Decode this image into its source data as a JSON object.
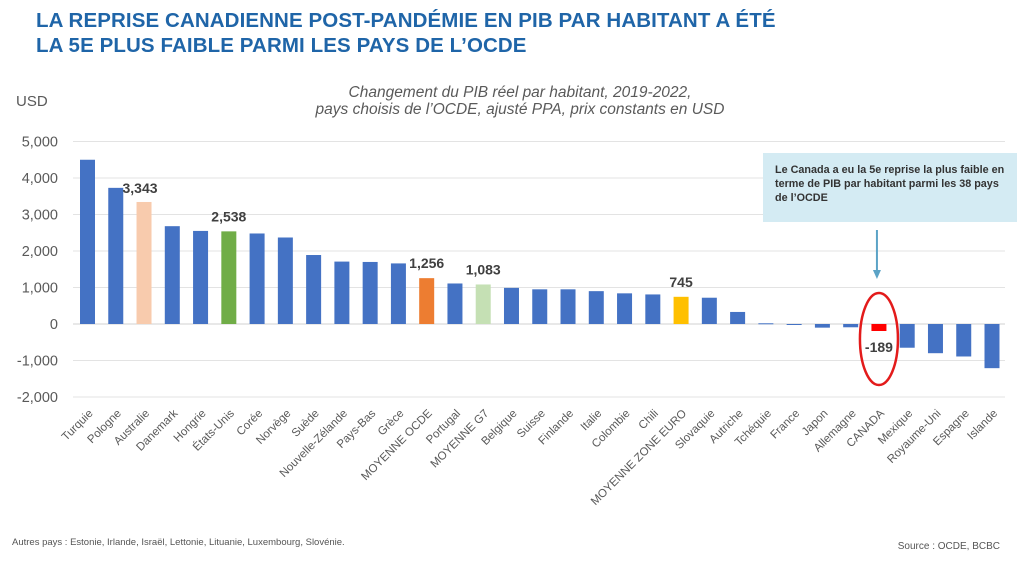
{
  "header": {
    "title_line1": "LA REPRISE CANADIENNE POST-PANDÉMIE EN PIB PAR HABITANT A ÉTÉ",
    "title_line2": "LA 5E PLUS FAIBLE PARMI LES PAYS DE L’OCDE"
  },
  "colors": {
    "default": "#4472c4",
    "Australie": "#f8cbad",
    "États-Unis": "#70ad47",
    "MOYENNE OCDE": "#ed7d31",
    "MOYENNE G7": "#c5e0b4",
    "MOYENNE ZONE EURO": "#ffc000",
    "CANADA": "#ff0000",
    "title": "#1f65a8",
    "callout_bg": "#d4ebf3",
    "arrow": "#5ba3c6",
    "ellipse": "#e31b1b"
  },
  "chart_data": {
    "type": "bar",
    "title": "Changement du PIB réel par habitant, 2019-2022,",
    "subtitle": "pays choisis de l’OCDE, ajusté PPA, prix constants en USD",
    "ylabel": "USD",
    "xlabel": "",
    "ylim": [
      -2000,
      5000
    ],
    "yticks": [
      5000,
      4000,
      3000,
      2000,
      1000,
      0,
      -1000,
      -2000
    ],
    "ytick_labels": [
      "5,000",
      "4,000",
      "3,000",
      "2,000",
      "1,000",
      "0",
      "-1,000",
      "-2,000"
    ],
    "grid": true,
    "categories": [
      "Turquie",
      "Pologne",
      "Australie",
      "Danemark",
      "Hongrie",
      "États-Unis",
      "Corée",
      "Norvège",
      "Suède",
      "Nouvelle-Zélande",
      "Pays-Bas",
      "Grèce",
      "MOYENNE OCDE",
      "Portugal",
      "MOYENNE G7",
      "Belgique",
      "Suisse",
      "Finlande",
      "Italie",
      "Colombie",
      "Chili",
      "MOYENNE ZONE EURO",
      "Slovaquie",
      "Autriche",
      "Tchéquie",
      "France",
      "Japon",
      "Allemagne",
      "CANADA",
      "Mexique",
      "Royaume-Uni",
      "Espagne",
      "Islande"
    ],
    "values": [
      4500,
      3730,
      3343,
      2680,
      2550,
      2538,
      2480,
      2370,
      1890,
      1710,
      1700,
      1660,
      1256,
      1110,
      1083,
      990,
      950,
      950,
      900,
      840,
      810,
      745,
      720,
      330,
      20,
      -20,
      -100,
      -90,
      -189,
      -650,
      -800,
      -890,
      -1210
    ],
    "data_labels": {
      "Australie": "3,343",
      "États-Unis": "2,538",
      "MOYENNE OCDE": "1,256",
      "MOYENNE G7": "1,083",
      "MOYENNE ZONE EURO": "745",
      "CANADA": "-189"
    },
    "annotation": "Le Canada a eu la 5e reprise la plus faible en terme de PIB par habitant parmi les 38 pays de l’OCDE",
    "highlight": "CANADA"
  },
  "footer": {
    "note": "Autres pays : Estonie, Irlande, Israël, Lettonie, Lituanie, Luxembourg, Slovénie.",
    "source": "Source : OCDE, BCBC"
  }
}
